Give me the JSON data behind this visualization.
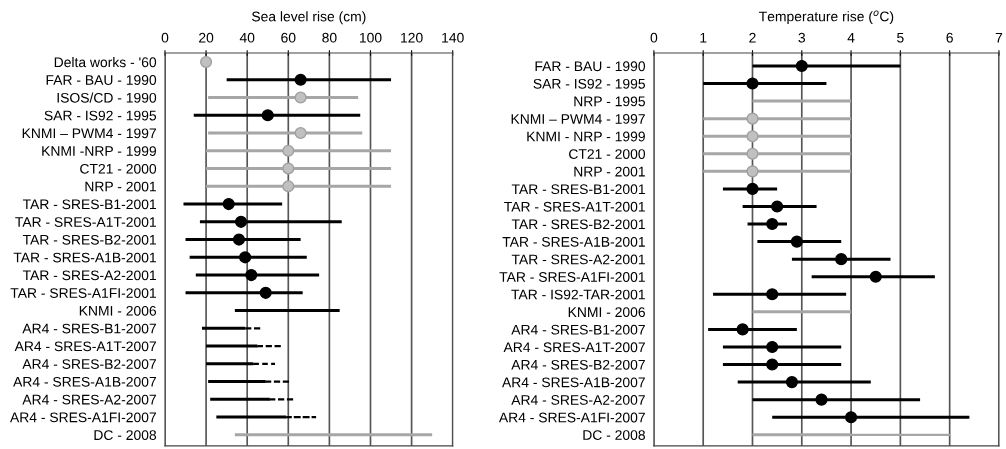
{
  "chart_data": [
    {
      "type": "bar",
      "orientation": "horizontal",
      "xlabel": "Sea level rise (cm)",
      "xlim": [
        0,
        140
      ],
      "xticks": [
        0,
        20,
        40,
        60,
        80,
        100,
        120,
        140
      ],
      "grid": "x",
      "categories": [
        "Delta works - '60",
        "FAR - BAU - 1990",
        "ISOS/CD - 1990",
        "SAR - IS92 - 1995",
        "KNMI – PWM4 - 1997",
        "KNMI -NRP - 1999",
        "CT21 - 2000",
        "NRP - 2001",
        "TAR - SRES-B1-2001",
        "TAR - SRES-A1T-2001",
        "TAR - SRES-B2-2001",
        "TAR - SRES-A1B-2001",
        "TAR - SRES-A2-2001",
        "TAR - SRES-A1FI-2001",
        "KNMI - 2006",
        "AR4 - SRES-B1-2007",
        "AR4 - SRES-A1T-2007",
        "AR4 - SRES-B2-2007",
        "AR4 - SRES-A1B-2007",
        "AR4 - SRES-A2-2007",
        "AR4 - SRES-A1FI-2007",
        "DC - 2008"
      ],
      "series": [
        {
          "line_style": "solid",
          "base": [
            null,
            30,
            21,
            14,
            21,
            20,
            20,
            20,
            9,
            17,
            10,
            12,
            15,
            10,
            34,
            18,
            20,
            20,
            21,
            22,
            25,
            34
          ],
          "values": [
            null,
            80,
            73,
            81,
            75,
            90,
            90,
            90,
            48,
            69,
            56,
            57,
            60,
            57,
            51,
            21,
            25,
            23,
            28,
            29,
            34,
            96
          ],
          "colors": [
            null,
            "#000000",
            "#a6a6a6",
            "#000000",
            "#a6a6a6",
            "#a6a6a6",
            "#a6a6a6",
            "#a6a6a6",
            "#000000",
            "#000000",
            "#000000",
            "#000000",
            "#000000",
            "#000000",
            "#000000",
            "#000000",
            "#000000",
            "#000000",
            "#000000",
            "#000000",
            "#000000",
            "#a6a6a6"
          ]
        },
        {
          "line_style": "dashed",
          "base": [
            null,
            null,
            null,
            null,
            null,
            null,
            null,
            null,
            null,
            null,
            null,
            null,
            null,
            null,
            null,
            39,
            45,
            43,
            49,
            51,
            59,
            null
          ],
          "values": [
            null,
            null,
            null,
            null,
            null,
            null,
            null,
            null,
            null,
            null,
            null,
            null,
            null,
            null,
            null,
            8,
            12,
            10,
            12,
            12,
            14,
            null
          ],
          "colors": [
            null,
            null,
            null,
            null,
            null,
            null,
            null,
            null,
            null,
            null,
            null,
            null,
            null,
            null,
            null,
            "#000000",
            "#000000",
            "#000000",
            "#000000",
            "#000000",
            "#000000",
            null
          ]
        },
        {
          "type": "scatter",
          "marker": "circle",
          "values": [
            20,
            66,
            66,
            50,
            66,
            60,
            60,
            60,
            31,
            37,
            36,
            39,
            42,
            49,
            null,
            null,
            null,
            null,
            null,
            null,
            null,
            null
          ],
          "colors": [
            "#c0c0c0",
            "#000000",
            "#c0c0c0",
            "#000000",
            "#c0c0c0",
            "#c0c0c0",
            "#c0c0c0",
            "#c0c0c0",
            "#000000",
            "#000000",
            "#000000",
            "#000000",
            "#000000",
            "#000000",
            null,
            null,
            null,
            null,
            null,
            null,
            null,
            null
          ]
        }
      ]
    },
    {
      "type": "bar",
      "orientation": "horizontal",
      "xlabel": "Temperature rise ($^{o}$C)",
      "xlim": [
        0,
        7
      ],
      "xticks": [
        0,
        1,
        2,
        3,
        4,
        5,
        6,
        7
      ],
      "grid": "x",
      "categories": [
        "FAR - BAU - 1990",
        "SAR - IS92 - 1995",
        "NRP - 1995",
        "KNMI – PWM4 - 1997",
        "KNMI - NRP - 1999",
        "CT21 - 2000",
        "NRP - 2001",
        "TAR - SRES-B1-2001",
        "TAR - SRES-A1T-2001",
        "TAR - SRES-B2-2001",
        "TAR - SRES-A1B-2001",
        "TAR - SRES-A2-2001",
        "TAR - SRES-A1FI-2001",
        "TAR - IS92-TAR-2001",
        "KNMI - 2006",
        "AR4 - SRES-B1-2007",
        "AR4 - SRES-A1T-2007",
        "AR4 - SRES-B2-2007",
        "AR4 - SRES-A1B-2007",
        "AR4 - SRES-A2-2007",
        "AR4 - SRES-A1FI-2007",
        "DC - 2008"
      ],
      "series": [
        {
          "line_style": "solid",
          "base": [
            2,
            1,
            2,
            1,
            1,
            1,
            1,
            1.4,
            1.8,
            1.9,
            2.1,
            2.8,
            3.2,
            1.2,
            2,
            1.1,
            1.4,
            1.4,
            1.7,
            2,
            2.4,
            2
          ],
          "values": [
            3,
            2.5,
            2,
            3,
            3,
            3,
            3,
            1.1,
            1.5,
            0.8,
            1.7,
            2.0,
            2.5,
            2.7,
            2,
            1.8,
            2.4,
            2.4,
            2.7,
            3.4,
            4.0,
            2
          ],
          "colors": [
            "#000000",
            "#000000",
            "#a6a6a6",
            "#a6a6a6",
            "#a6a6a6",
            "#a6a6a6",
            "#a6a6a6",
            "#000000",
            "#000000",
            "#000000",
            "#000000",
            "#000000",
            "#000000",
            "#000000",
            "#a6a6a6",
            "#000000",
            "#000000",
            "#000000",
            "#000000",
            "#000000",
            "#000000",
            "#a6a6a6"
          ]
        },
        {
          "line_style": "dashed",
          "base": [
            null,
            null,
            null,
            null,
            null,
            null,
            null,
            null,
            null,
            null,
            null,
            null,
            null,
            null,
            null,
            null,
            null,
            null,
            null,
            null,
            null,
            4
          ],
          "values": [
            null,
            null,
            null,
            null,
            null,
            null,
            null,
            null,
            null,
            null,
            null,
            null,
            null,
            null,
            null,
            null,
            null,
            null,
            null,
            null,
            null,
            2
          ],
          "colors": [
            null,
            null,
            null,
            null,
            null,
            null,
            null,
            null,
            null,
            null,
            null,
            null,
            null,
            null,
            null,
            null,
            null,
            null,
            null,
            null,
            null,
            "#a6a6a6"
          ]
        },
        {
          "type": "scatter",
          "marker": "circle",
          "values": [
            3,
            2,
            null,
            2,
            2,
            2,
            2,
            2,
            2.5,
            2.4,
            2.9,
            3.8,
            4.5,
            2.4,
            null,
            1.8,
            2.4,
            2.4,
            2.8,
            3.4,
            4.0,
            null
          ],
          "colors": [
            "#000000",
            "#000000",
            null,
            "#c0c0c0",
            "#c0c0c0",
            "#c0c0c0",
            "#c0c0c0",
            "#000000",
            "#000000",
            "#000000",
            "#000000",
            "#000000",
            "#000000",
            "#000000",
            null,
            "#000000",
            "#000000",
            "#000000",
            "#000000",
            "#000000",
            "#000000",
            null
          ]
        }
      ]
    }
  ]
}
